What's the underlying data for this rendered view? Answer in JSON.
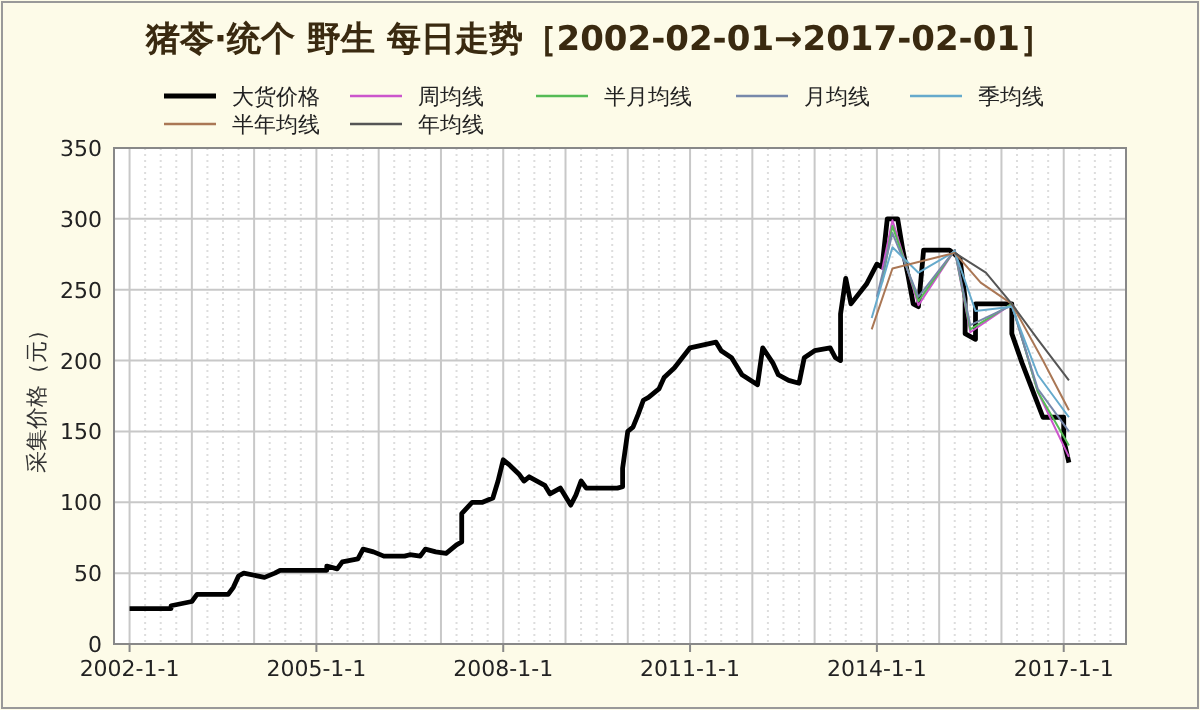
{
  "chart_data": {
    "type": "line",
    "title": "猪苓·统个 野生 每日走势［2002-02-01→2017-02-01］",
    "ylabel": "采集价格（元）",
    "legend": "top",
    "grid": true,
    "line_style": "solid",
    "marker": "none",
    "xlim": [
      "2001-10",
      "2018-01"
    ],
    "ylim": [
      0,
      350
    ],
    "yticks": [
      0,
      50,
      100,
      150,
      200,
      250,
      300,
      350
    ],
    "xticks": [
      {
        "value": "2002-01",
        "label": "2002-1-1"
      },
      {
        "value": "2005-01",
        "label": "2005-1-1"
      },
      {
        "value": "2008-01",
        "label": "2008-1-1"
      },
      {
        "value": "2011-01",
        "label": "2011-1-1"
      },
      {
        "value": "2014-01",
        "label": "2014-1-1"
      },
      {
        "value": "2017-01",
        "label": "2017-1-1"
      }
    ],
    "series": [
      {
        "name": "大货价格",
        "color": "#000000",
        "x": [
          "2002-01",
          "2002-09",
          "2002-09",
          "2003-01",
          "2003-02",
          "2003-08",
          "2003-09",
          "2003-10",
          "2003-11",
          "2004-03",
          "2004-05",
          "2004-06",
          "2005-03",
          "2005-03",
          "2005-05",
          "2005-06",
          "2005-09",
          "2005-10",
          "2005-12",
          "2006-02",
          "2006-06",
          "2006-07",
          "2006-09",
          "2006-10",
          "2006-12",
          "2007-02",
          "2007-03",
          "2007-04",
          "2007-05",
          "2007-05",
          "2007-07",
          "2007-09",
          "2007-11",
          "2007-12",
          "2008-01",
          "2008-02",
          "2008-04",
          "2008-05",
          "2008-06",
          "2008-09",
          "2008-10",
          "2008-12",
          "2009-02",
          "2009-03",
          "2009-04",
          "2009-05",
          "2009-11",
          "2009-12",
          "2009-12",
          "2010-01",
          "2010-02",
          "2010-03",
          "2010-04",
          "2010-05",
          "2010-07",
          "2010-08",
          "2010-10",
          "2011-01",
          "2011-06",
          "2011-07",
          "2011-09",
          "2011-11",
          "2012-02",
          "2012-03",
          "2012-05",
          "2012-06",
          "2012-08",
          "2012-10",
          "2012-11",
          "2013-01",
          "2013-04",
          "2013-05",
          "2013-06",
          "2013-06",
          "2013-07",
          "2013-08",
          "2013-11",
          "2014-01",
          "2014-02",
          "2014-03",
          "2014-05",
          "2014-06",
          "2014-07",
          "2014-08",
          "2014-09",
          "2014-10",
          "2015-03",
          "2015-05",
          "2015-06",
          "2015-06",
          "2015-08",
          "2015-08",
          "2016-03",
          "2016-03",
          "2016-05",
          "2016-07",
          "2016-09",
          "2017-01",
          "2017-01",
          "2017-02"
        ],
        "values": [
          25,
          25,
          27,
          30,
          35,
          35,
          40,
          48,
          50,
          47,
          50,
          52,
          52,
          55,
          53,
          58,
          60,
          67,
          65,
          62,
          62,
          63,
          62,
          67,
          65,
          64,
          67,
          70,
          72,
          92,
          100,
          100,
          103,
          115,
          130,
          127,
          120,
          115,
          118,
          112,
          106,
          110,
          98,
          105,
          115,
          110,
          110,
          111,
          124,
          150,
          153,
          162,
          172,
          174,
          180,
          188,
          195,
          209,
          213,
          207,
          202,
          190,
          183,
          209,
          198,
          190,
          186,
          184,
          202,
          207,
          209,
          202,
          200,
          233,
          258,
          240,
          254,
          268,
          266,
          300,
          300,
          278,
          260,
          240,
          238,
          278,
          278,
          272,
          244,
          219,
          215,
          240,
          240,
          219,
          198,
          179,
          160,
          160,
          144,
          128
        ]
      },
      {
        "name": "周均线",
        "color": "#cc55cc",
        "x": [
          "2014-02",
          "2014-04",
          "2014-09",
          "2015-04",
          "2015-07",
          "2016-03",
          "2016-08",
          "2017-02"
        ],
        "values": [
          264,
          299,
          239,
          278,
          220,
          240,
          178,
          132
        ]
      },
      {
        "name": "半月均线",
        "color": "#55bb55",
        "x": [
          "2014-02",
          "2014-04",
          "2014-09",
          "2015-04",
          "2015-07",
          "2016-03",
          "2016-08",
          "2017-02"
        ],
        "values": [
          255,
          295,
          242,
          278,
          222,
          240,
          178,
          140
        ]
      },
      {
        "name": "月均线",
        "color": "#7788aa",
        "x": [
          "2014-01",
          "2014-04",
          "2014-09",
          "2015-04",
          "2015-07",
          "2016-03",
          "2016-08",
          "2017-02"
        ],
        "values": [
          245,
          290,
          245,
          278,
          225,
          239,
          180,
          150
        ]
      },
      {
        "name": "季均线",
        "color": "#66aacc",
        "x": [
          "2013-12",
          "2014-04",
          "2014-09",
          "2015-04",
          "2015-08",
          "2016-03",
          "2016-08",
          "2017-02"
        ],
        "values": [
          230,
          280,
          262,
          277,
          235,
          238,
          190,
          160
        ]
      },
      {
        "name": "半年均线",
        "color": "#aa7755",
        "x": [
          "2013-12",
          "2014-04",
          "2015-04",
          "2015-09",
          "2016-03",
          "2016-09",
          "2017-02"
        ],
        "values": [
          222,
          265,
          276,
          255,
          240,
          200,
          165
        ]
      },
      {
        "name": "年均线",
        "color": "#555555",
        "x": [
          "2015-04",
          "2015-10",
          "2016-03",
          "2016-08",
          "2017-02"
        ],
        "values": [
          276,
          262,
          240,
          215,
          186
        ]
      }
    ]
  }
}
